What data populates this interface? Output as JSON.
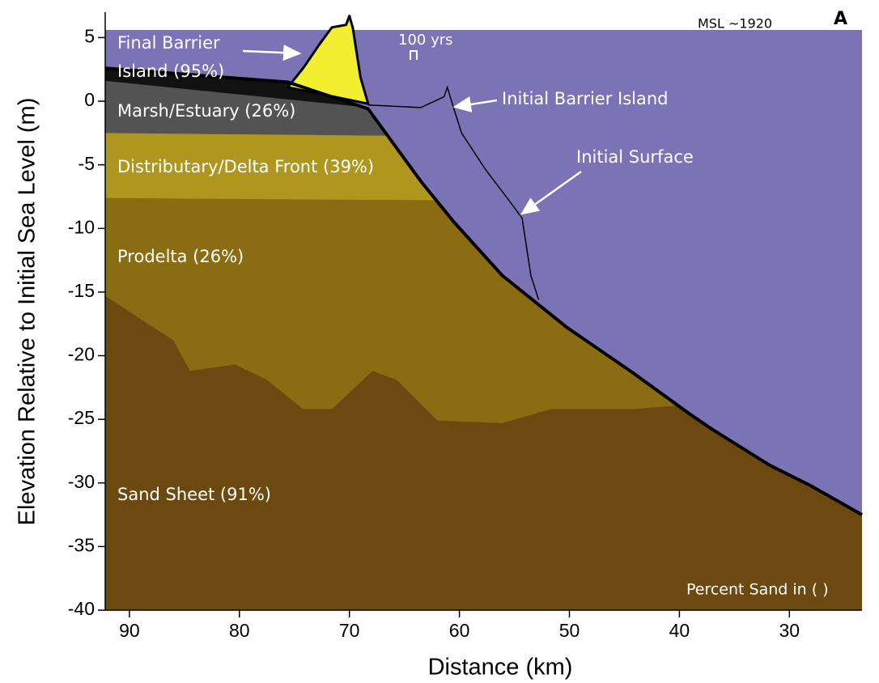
{
  "chart_data": {
    "type": "area",
    "x_label": "Distance (km)",
    "y_label": "Elevation Relative to Initial Sea Level (m)",
    "xlim": [
      92.2,
      23.4
    ],
    "ylim": [
      -40,
      7
    ],
    "xticks": [
      90,
      80,
      70,
      60,
      50,
      40,
      30
    ],
    "yticks": [
      5,
      0,
      -5,
      -10,
      -15,
      -20,
      -25,
      -30,
      -35,
      -40
    ],
    "sea_level": 5.6,
    "water_color": "#7b73b6",
    "surface": {
      "fill_color": "#111111",
      "line_color": "#000000",
      "x": [
        92.2,
        75.6,
        68.3,
        63.5,
        60.5,
        56.1,
        50.2,
        44.3,
        39.2,
        37.0,
        31.8,
        28.1,
        23.4
      ],
      "values": [
        2.6,
        1.5,
        -0.6,
        -6.3,
        -9.5,
        -13.7,
        -17.8,
        -21.3,
        -24.5,
        -25.8,
        -28.6,
        -30.2,
        -32.5
      ]
    },
    "layers": [
      {
        "name": "Marsh/Estuary (26%)",
        "color": "#535353",
        "x": [
          92.2,
          68.3,
          23.4
        ],
        "values": [
          1.6,
          -0.5,
          -0.6
        ]
      },
      {
        "name": "Distributary/Delta Front (39%)",
        "color": "#ae961f",
        "x": [
          92.2,
          68.3,
          23.4
        ],
        "values": [
          -2.5,
          -2.7,
          -2.9
        ]
      },
      {
        "name": "Prodelta (26%)",
        "color": "#8a6c13",
        "x": [
          92.2,
          78,
          23.4
        ],
        "values": [
          -7.6,
          -7.7,
          -8.0
        ]
      },
      {
        "name": "Sand Sheet (91%)",
        "color": "#6b4911",
        "x": [
          92.2,
          86.0,
          84.5,
          80.4,
          77.5,
          74.2,
          71.6,
          67.9,
          65.7,
          62.0,
          56.1,
          51.7,
          44.3,
          39.9,
          23.4
        ],
        "values": [
          -15.3,
          -18.8,
          -21.2,
          -20.7,
          -21.9,
          -24.2,
          -24.2,
          -21.2,
          -21.9,
          -25.1,
          -25.3,
          -24.2,
          -24.2,
          -23.9,
          -24.0
        ]
      }
    ],
    "final_barrier": {
      "name_lines": [
        "Final Barrier",
        "Island (95%)"
      ],
      "color": "#f2ee30",
      "x": [
        75.6,
        74.2,
        72.7,
        71.6,
        70.3,
        70.0,
        69.7,
        69.0,
        68.3
      ],
      "values": [
        1.1,
        2.6,
        4.5,
        5.8,
        6.0,
        6.7,
        5.8,
        1.9,
        -0.2
      ]
    },
    "initial_surface": {
      "name": "Initial Surface",
      "x": [
        68.3,
        63.5,
        61.4,
        61.1,
        60.5,
        59.8,
        57.6,
        55.4,
        54.3,
        53.5,
        52.8
      ],
      "values": [
        -0.3,
        -0.5,
        0.35,
        1.1,
        -0.6,
        -2.5,
        -5.4,
        -7.9,
        -9.2,
        -13.7,
        -15.6
      ]
    },
    "annotations": {
      "initial_barrier": "Initial Barrier Island",
      "interval": "100 yrs",
      "msl": "MSL ~1920",
      "panel": "A",
      "note": "Percent Sand in ( )"
    }
  }
}
